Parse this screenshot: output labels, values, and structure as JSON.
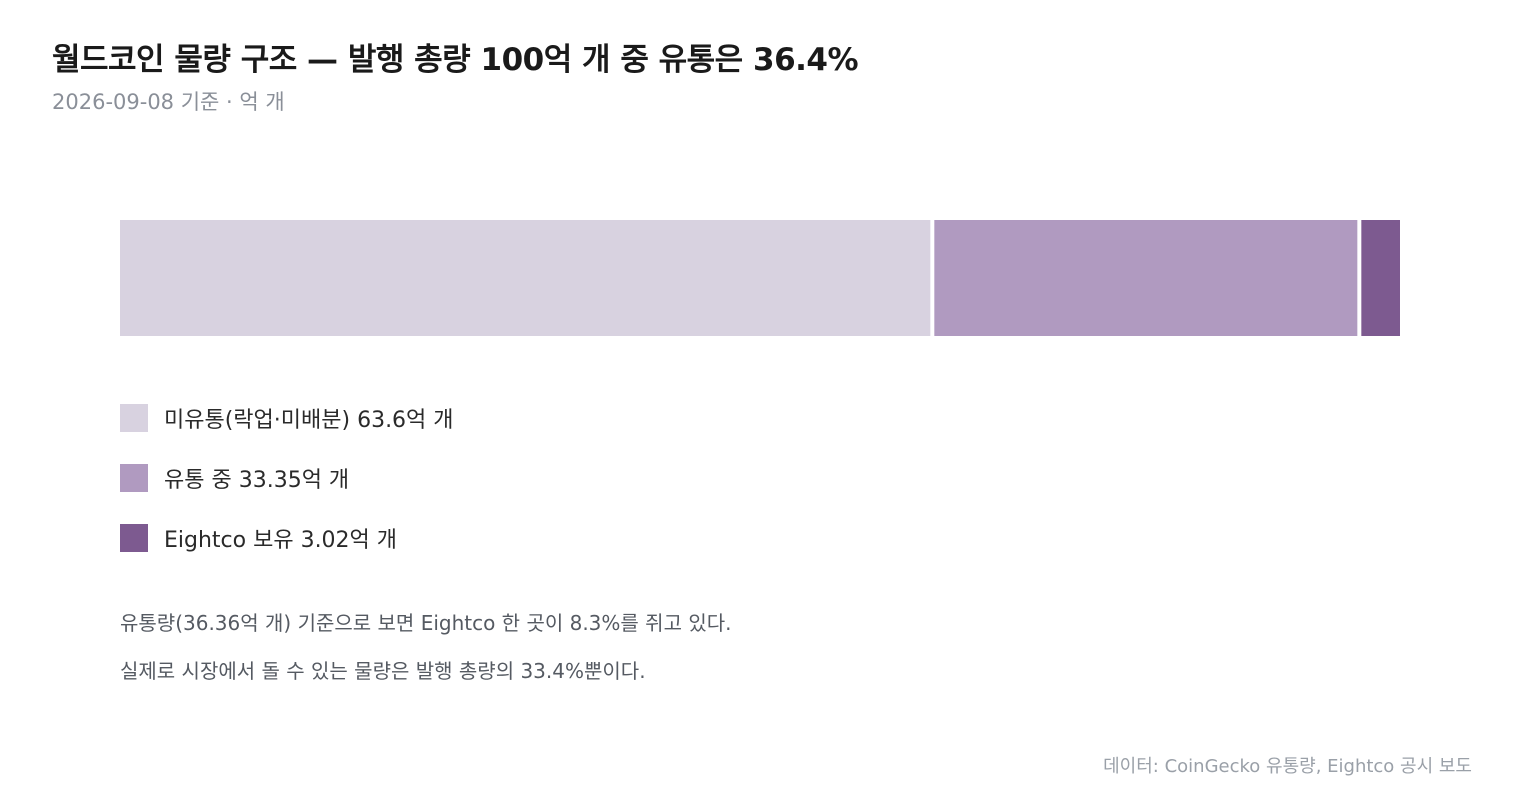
{
  "header": {
    "title": "월드코인 물량 구조 — 발행 총량 100억 개 중 유통은 36.4%",
    "subtitle": "2026-09-08 기준 · 억 개"
  },
  "chart_data": {
    "type": "bar",
    "orientation": "horizontal-stacked",
    "title": "월드코인 물량 구조 — 발행 총량 100억 개 중 유통은 36.4%",
    "unit": "억 개",
    "total": 100,
    "series": [
      {
        "name": "미유통(락업·미배분)",
        "value": 63.6,
        "color": "#d8d2e0",
        "label": "미유통(락업·미배분) 63.6억 개"
      },
      {
        "name": "유통 중",
        "value": 33.35,
        "color": "#b09ac0",
        "label": "유통 중 33.35억 개"
      },
      {
        "name": "Eightco 보유",
        "value": 3.02,
        "color": "#7d5a90",
        "label": "Eightco 보유 3.02억 개"
      }
    ]
  },
  "notes": [
    "유통량(36.36억 개) 기준으로 보면 Eightco 한 곳이 8.3%를 쥐고 있다.",
    "실제로 시장에서 돌 수 있는 물량은 발행 총량의 33.4%뿐이다."
  ],
  "source": "데이터: CoinGecko 유통량, Eightco 공시 보도"
}
